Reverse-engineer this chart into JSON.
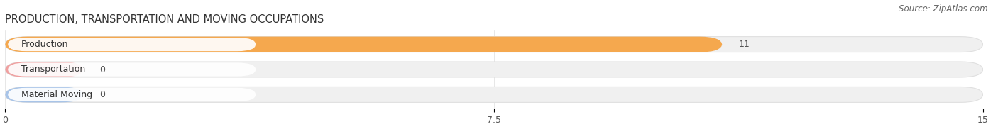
{
  "title": "PRODUCTION, TRANSPORTATION AND MOVING OCCUPATIONS",
  "source_text": "Source: ZipAtlas.com",
  "categories": [
    "Production",
    "Transportation",
    "Material Moving"
  ],
  "values": [
    11,
    0,
    0
  ],
  "bar_colors": [
    "#f5a84e",
    "#f0a0a0",
    "#a8c4e8"
  ],
  "xlim": [
    0,
    15
  ],
  "xticks": [
    0,
    7.5,
    15
  ],
  "bar_height": 0.62,
  "fig_bg": "#ffffff",
  "bar_bg_color": "#f0f0f0",
  "bar_bg_edge": "#e0e0e0",
  "title_color": "#333333",
  "source_color": "#666666",
  "label_bg": "#ffffff",
  "value_label_color": "#555555"
}
